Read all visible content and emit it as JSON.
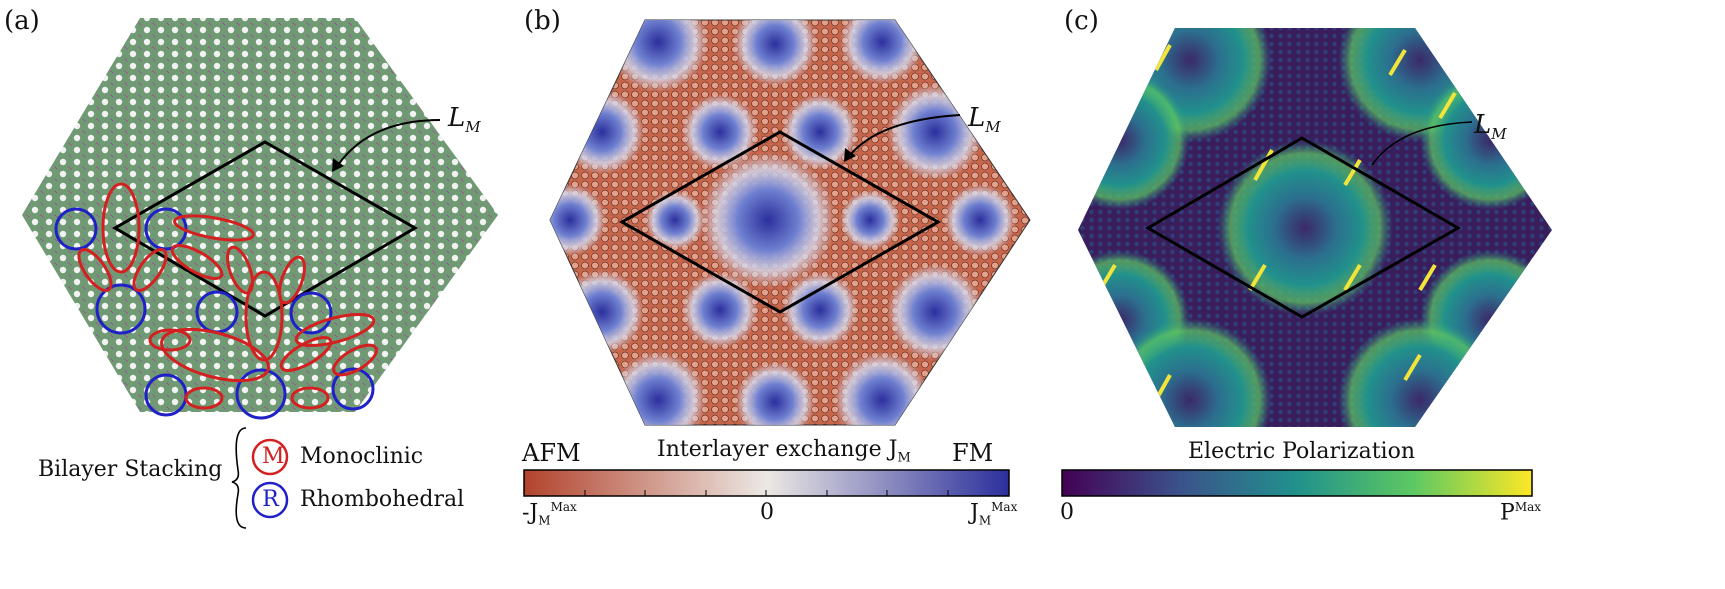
{
  "panel_a": {
    "label": "(a)",
    "moire_label": "L",
    "moire_sub": "M",
    "legend_title": "Bilayer Stacking",
    "legend_items": [
      {
        "symbol": "M",
        "text": "Monoclinic",
        "color": "#d42020"
      },
      {
        "symbol": "R",
        "text": "Rhombohedral",
        "color": "#2020c8"
      }
    ]
  },
  "panel_b": {
    "label": "(b)",
    "moire_label": "L",
    "moire_sub": "M",
    "colorbar": {
      "title": "Interlayer exchange J",
      "title_sub": "M",
      "left_label": "AFM",
      "right_label": "FM",
      "tick_left": "-J",
      "tick_left_sub": "M",
      "tick_left_sup": "Max",
      "tick_mid": "0",
      "tick_right": "J",
      "tick_right_sub": "M",
      "tick_right_sup": "Max",
      "colors": [
        "#b2432c",
        "#ffffff",
        "#2b2f9c"
      ]
    }
  },
  "panel_c": {
    "label": "(c)",
    "moire_label": "L",
    "moire_sub": "M",
    "colorbar": {
      "title": "Electric Polarization",
      "tick_left": "0",
      "tick_right": "P",
      "tick_right_sup": "Max",
      "colors": [
        "#440154",
        "#3b528b",
        "#21918c",
        "#5ec962",
        "#fde725"
      ]
    }
  }
}
